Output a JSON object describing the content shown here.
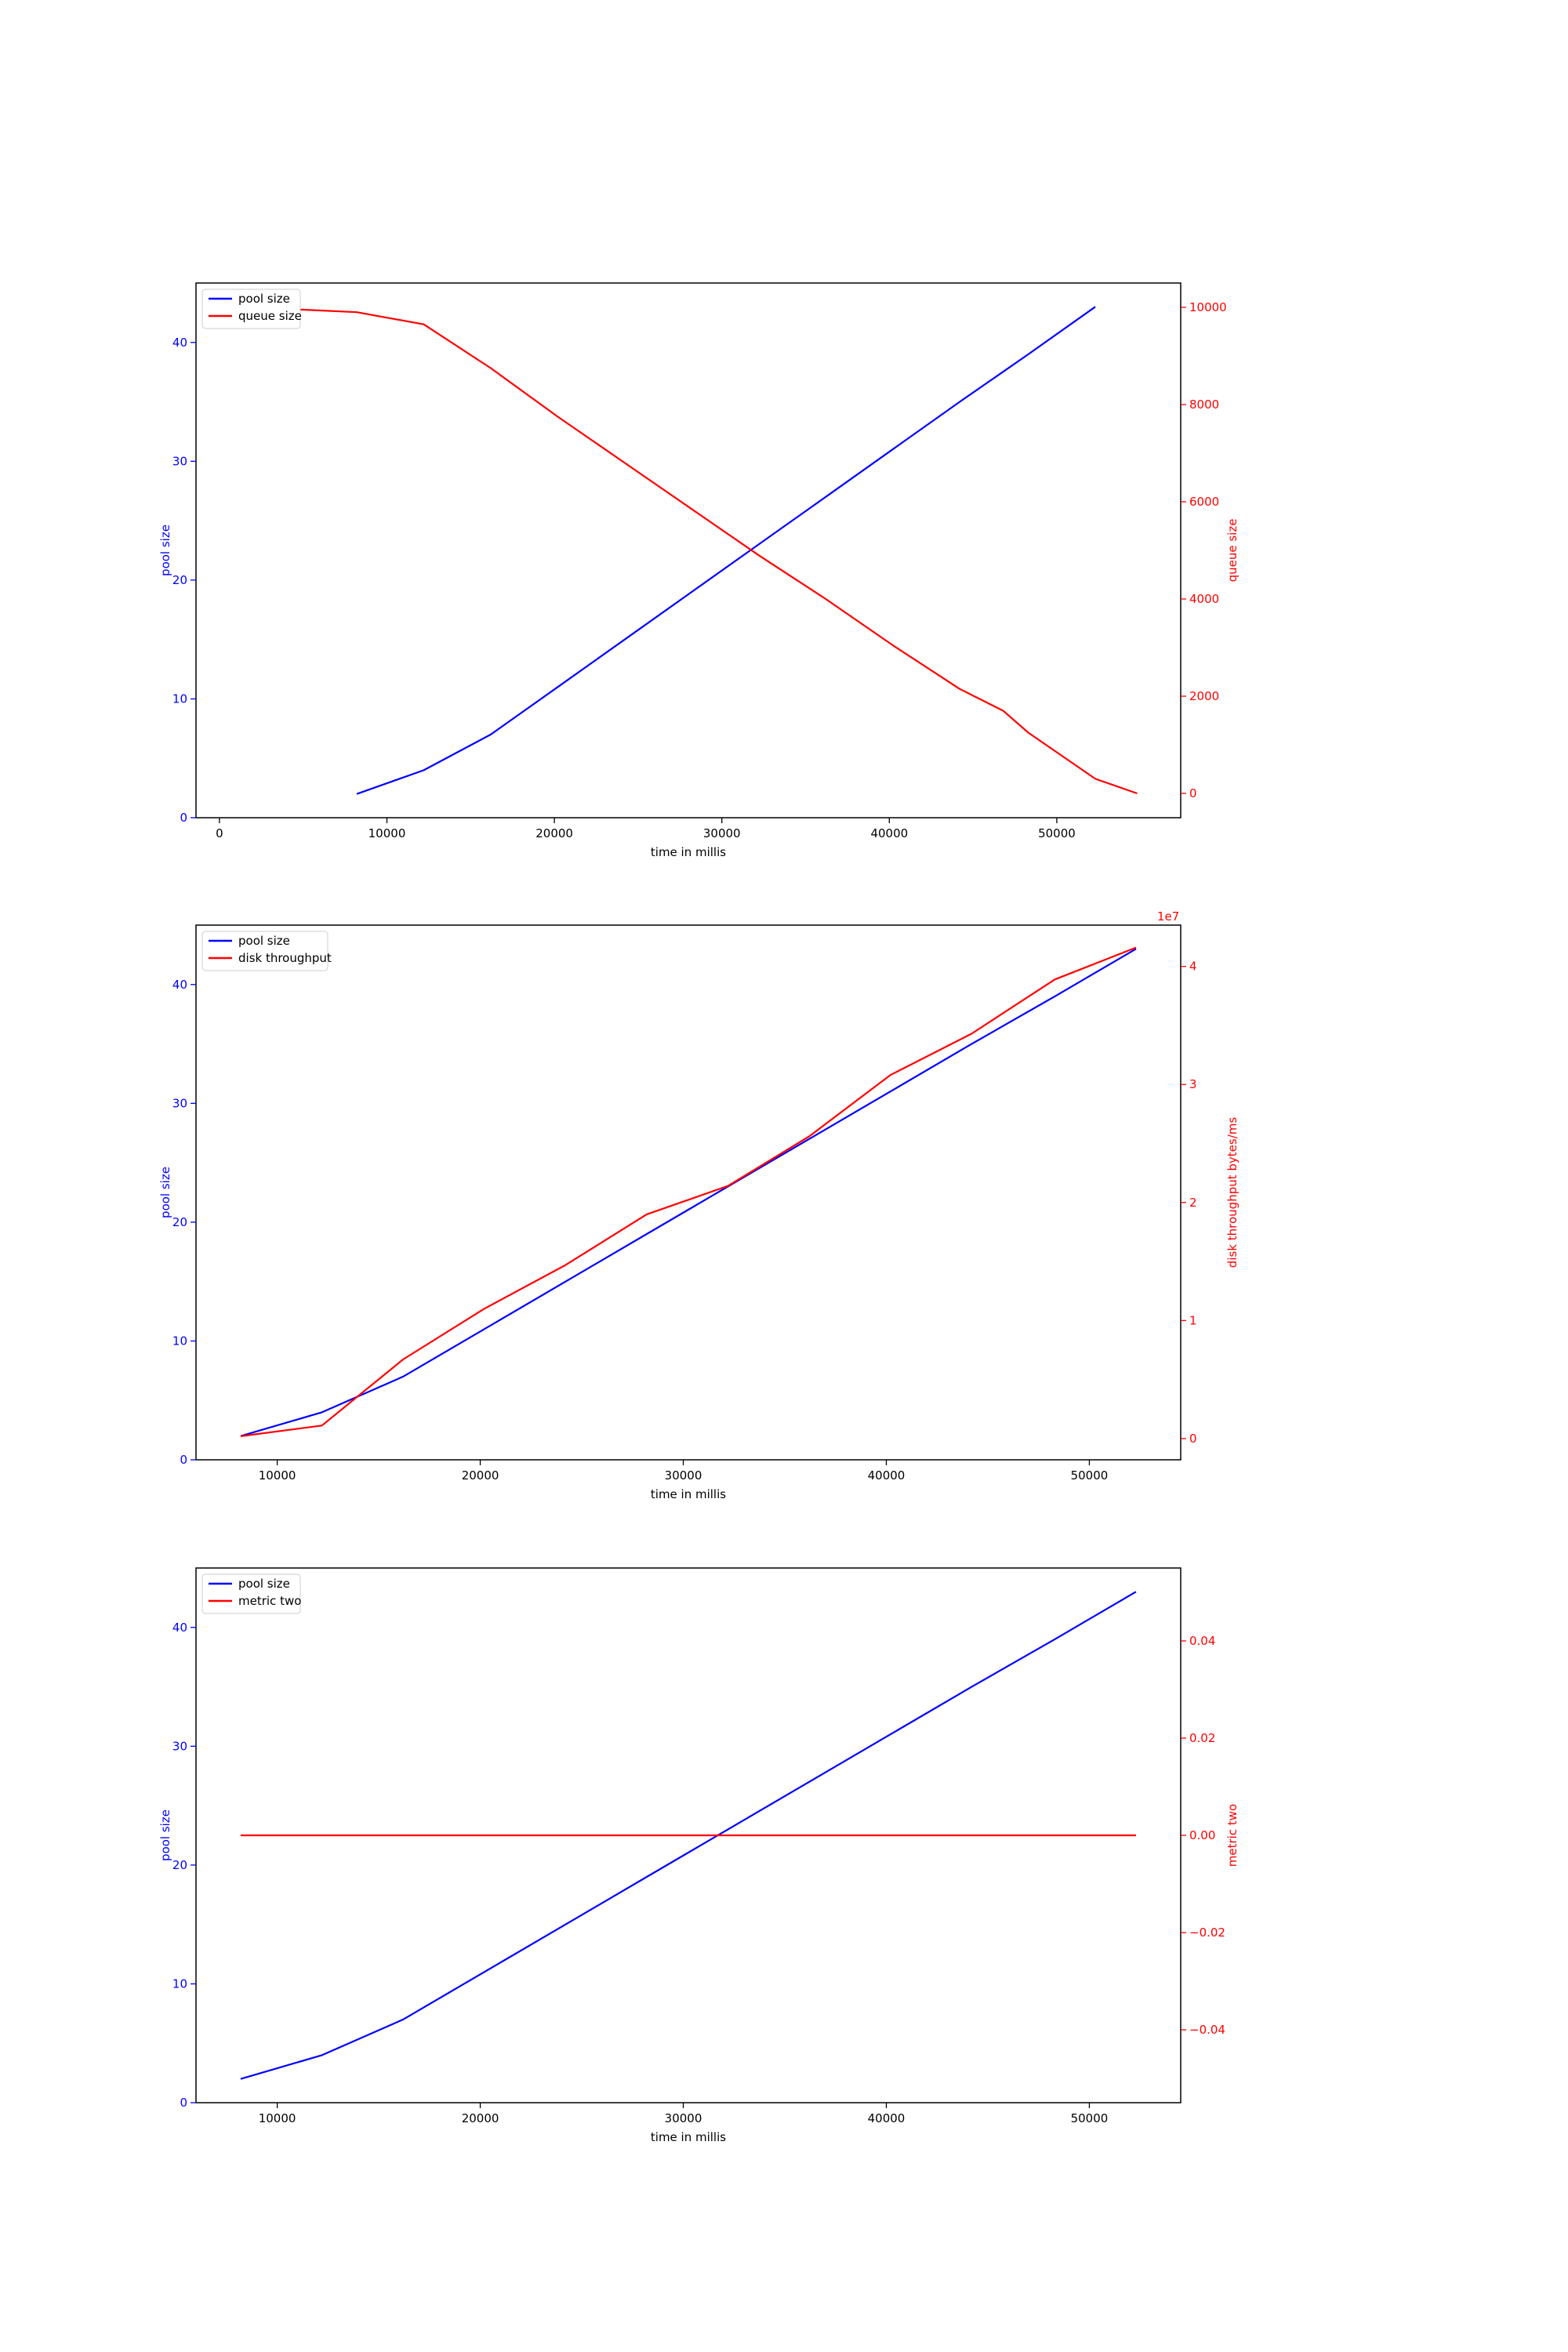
{
  "chart_data": [
    {
      "type": "line",
      "xlabel": "time in millis",
      "ylabel_left": "pool size",
      "ylabel_right": "queue size",
      "left_color": "#0000ff",
      "right_color": "#ff0000",
      "xlim": [
        -1400,
        57400
      ],
      "ylim_left": [
        0,
        45
      ],
      "ylim_right": [
        -500,
        10500
      ],
      "x_ticks": [
        0,
        10000,
        20000,
        30000,
        40000,
        50000
      ],
      "y_left_ticks": [
        0,
        10,
        20,
        30,
        40
      ],
      "y_right_ticks": [
        0,
        2000,
        4000,
        6000,
        8000,
        10000
      ],
      "right_offset_label": "",
      "legend": "top-left",
      "series": [
        {
          "name": "pool size",
          "axis": "left",
          "color": "#0000ff",
          "points": [
            [
              8200,
              2
            ],
            [
              12200,
              4
            ],
            [
              16200,
              7
            ],
            [
              20200,
              11
            ],
            [
              24200,
              15
            ],
            [
              28200,
              19
            ],
            [
              32200,
              23
            ],
            [
              36200,
              27
            ],
            [
              40200,
              31
            ],
            [
              44200,
              35
            ],
            [
              48300,
              39
            ],
            [
              52300,
              43
            ]
          ]
        },
        {
          "name": "queue size",
          "axis": "right",
          "color": "#ff0000",
          "points": [
            [
              2000,
              10000
            ],
            [
              8200,
              9900
            ],
            [
              12200,
              9650
            ],
            [
              16200,
              8750
            ],
            [
              20200,
              7750
            ],
            [
              24200,
              6800
            ],
            [
              28200,
              5850
            ],
            [
              32200,
              4900
            ],
            [
              36200,
              4000
            ],
            [
              40200,
              3050
            ],
            [
              44200,
              2150
            ],
            [
              46800,
              1700
            ],
            [
              48300,
              1250
            ],
            [
              52300,
              300
            ],
            [
              54800,
              0
            ]
          ]
        }
      ]
    },
    {
      "type": "line",
      "xlabel": "time in millis",
      "ylabel_left": "pool size",
      "ylabel_right": "disk throughput bytes/ms",
      "left_color": "#0000ff",
      "right_color": "#ff0000",
      "xlim": [
        6000,
        54500
      ],
      "ylim_left": [
        0,
        45
      ],
      "ylim_right": [
        -1800000,
        43500000
      ],
      "x_ticks": [
        10000,
        20000,
        30000,
        40000,
        50000
      ],
      "y_left_ticks": [
        0,
        10,
        20,
        30,
        40
      ],
      "y_right_ticks": [
        0,
        10000000,
        20000000,
        30000000,
        40000000
      ],
      "y_right_tick_labels": [
        "0",
        "1",
        "2",
        "3",
        "4"
      ],
      "right_offset_label": "1e7",
      "legend": "top-left",
      "series": [
        {
          "name": "pool size",
          "axis": "left",
          "color": "#0000ff",
          "points": [
            [
              8200,
              2
            ],
            [
              12200,
              4
            ],
            [
              16200,
              7
            ],
            [
              20200,
              11
            ],
            [
              24200,
              15
            ],
            [
              28200,
              19
            ],
            [
              32200,
              23
            ],
            [
              36200,
              27
            ],
            [
              40200,
              31
            ],
            [
              44200,
              35
            ],
            [
              48300,
              39
            ],
            [
              52300,
              43
            ]
          ]
        },
        {
          "name": "disk throughput",
          "axis": "right",
          "color": "#ff0000",
          "points": [
            [
              8200,
              200000
            ],
            [
              12200,
              1100000
            ],
            [
              16200,
              6700000
            ],
            [
              20200,
              11000000
            ],
            [
              24200,
              14700000
            ],
            [
              28200,
              19000000
            ],
            [
              32200,
              21400000
            ],
            [
              36200,
              25600000
            ],
            [
              40200,
              30800000
            ],
            [
              44200,
              34300000
            ],
            [
              48300,
              38900000
            ],
            [
              52300,
              41600000
            ]
          ]
        }
      ]
    },
    {
      "type": "line",
      "xlabel": "time in millis",
      "ylabel_left": "pool size",
      "ylabel_right": "metric two",
      "left_color": "#0000ff",
      "right_color": "#ff0000",
      "xlim": [
        6000,
        54500
      ],
      "ylim_left": [
        0,
        45
      ],
      "ylim_right": [
        -0.055,
        0.055
      ],
      "x_ticks": [
        10000,
        20000,
        30000,
        40000,
        50000
      ],
      "y_left_ticks": [
        0,
        10,
        20,
        30,
        40
      ],
      "y_right_ticks": [
        -0.04,
        -0.02,
        0,
        0.02,
        0.04
      ],
      "y_right_tick_labels": [
        "−0.04",
        "−0.02",
        "0.00",
        "0.02",
        "0.04"
      ],
      "right_offset_label": "",
      "legend": "top-left",
      "series": [
        {
          "name": "pool size",
          "axis": "left",
          "color": "#0000ff",
          "points": [
            [
              8200,
              2
            ],
            [
              12200,
              4
            ],
            [
              16200,
              7
            ],
            [
              20200,
              11
            ],
            [
              24200,
              15
            ],
            [
              28200,
              19
            ],
            [
              32200,
              23
            ],
            [
              36200,
              27
            ],
            [
              40200,
              31
            ],
            [
              44200,
              35
            ],
            [
              48300,
              39
            ],
            [
              52300,
              43
            ]
          ]
        },
        {
          "name": "metric two",
          "axis": "right",
          "color": "#ff0000",
          "points": [
            [
              8200,
              0
            ],
            [
              52300,
              0
            ]
          ]
        }
      ]
    }
  ]
}
